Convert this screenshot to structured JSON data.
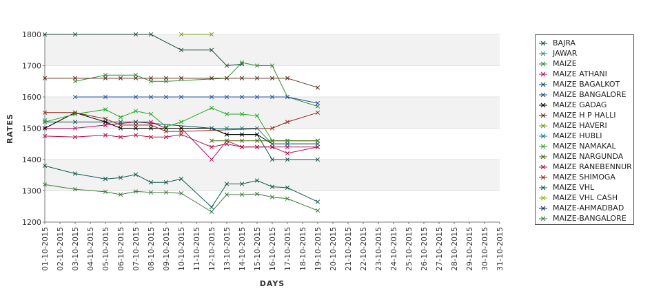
{
  "chart_data": {
    "type": "line",
    "title": "",
    "xlabel": "DAYS",
    "ylabel": "RATES",
    "ylim": [
      1200,
      1800
    ],
    "yticks": [
      1200,
      1300,
      1400,
      1500,
      1600,
      1700,
      1800
    ],
    "grid": "alternating horizontal bands",
    "legend_position": "right",
    "categories": [
      "01-10-2015",
      "02-10-2015",
      "03-10-2015",
      "04-10-2015",
      "05-10-2015",
      "06-10-2015",
      "07-10-2015",
      "08-10-2015",
      "09-10-2015",
      "10-10-2015",
      "11-10-2015",
      "12-10-2015",
      "13-10-2015",
      "14-10-2015",
      "15-10-2015",
      "16-10-2015",
      "17-10-2015",
      "18-10-2015",
      "19-10-2015",
      "20-10-2015",
      "21-10-2015",
      "22-10-2015",
      "23-10-2015",
      "24-10-2015",
      "25-10-2015",
      "26-10-2015",
      "27-10-2015",
      "28-10-2015",
      "29-10-2015",
      "30-10-2015",
      "31-10-2015"
    ],
    "series": [
      {
        "name": "BAJRA",
        "color": "#1a4a3a",
        "values": [
          1800,
          null,
          1800,
          null,
          null,
          null,
          1800,
          1800,
          null,
          1750,
          null,
          1750,
          1700,
          1705,
          null,
          null,
          null,
          null,
          null,
          null,
          null,
          null,
          null,
          null,
          null,
          null,
          null,
          null,
          null,
          null,
          null
        ]
      },
      {
        "name": "JAWAR",
        "color": "#3a8a7a",
        "values": [
          1525,
          null,
          null,
          null,
          null,
          null,
          null,
          null,
          null,
          null,
          null,
          null,
          null,
          null,
          null,
          null,
          null,
          null,
          null,
          null,
          null,
          null,
          null,
          null,
          null,
          null,
          null,
          null,
          null,
          null,
          null
        ]
      },
      {
        "name": "MAIZE",
        "color": "#2e8b2e",
        "values": [
          null,
          null,
          1650,
          null,
          1670,
          null,
          1670,
          1650,
          1650,
          null,
          null,
          null,
          1660,
          1710,
          1700,
          1700,
          1600,
          null,
          1570,
          null,
          null,
          null,
          null,
          null,
          null,
          null,
          null,
          null,
          null,
          null,
          null
        ]
      },
      {
        "name": "MAIZE ATHANI",
        "color": "#b0106a",
        "values": [
          1500,
          null,
          1500,
          null,
          1510,
          null,
          1520,
          1520,
          1500,
          1500,
          null,
          1400,
          1460,
          1440,
          1440,
          1440,
          1440,
          null,
          1440,
          null,
          null,
          null,
          null,
          null,
          null,
          null,
          null,
          null,
          null,
          null,
          null
        ]
      },
      {
        "name": "MAIZE BAGALKOT",
        "color": "#0f4f4f",
        "values": [
          1520,
          null,
          1520,
          null,
          1520,
          1520,
          1520,
          null,
          null,
          null,
          null,
          1500,
          1480,
          1480,
          1480,
          1400,
          1400,
          null,
          1400,
          null,
          null,
          null,
          null,
          null,
          null,
          null,
          null,
          null,
          null,
          null,
          null
        ]
      },
      {
        "name": "MAIZE BANGALORE",
        "color": "#1e4f9a",
        "values": [
          null,
          null,
          1600,
          null,
          1600,
          null,
          1600,
          1600,
          1600,
          1600,
          null,
          1600,
          1600,
          1600,
          1600,
          1600,
          1600,
          null,
          1580,
          null,
          null,
          null,
          null,
          null,
          null,
          null,
          null,
          null,
          null,
          null,
          null
        ]
      },
      {
        "name": "MAIZE GADAG",
        "color": "#000000",
        "values": [
          1500,
          null,
          1550,
          null,
          1520,
          1500,
          1500,
          1500,
          1500,
          1500,
          null,
          1500,
          1480,
          1480,
          1480,
          1450,
          1450,
          null,
          1450,
          null,
          null,
          null,
          null,
          null,
          null,
          null,
          null,
          null,
          null,
          null,
          null
        ]
      },
      {
        "name": "MAIZE H P HALLI",
        "color": "#5a2a1a",
        "values": [
          1660,
          null,
          1660,
          null,
          1660,
          1660,
          1660,
          1660,
          1660,
          1660,
          null,
          1660,
          1660,
          1660,
          1660,
          1660,
          1660,
          null,
          1630,
          null,
          null,
          null,
          null,
          null,
          null,
          null,
          null,
          null,
          null,
          null,
          null
        ]
      },
      {
        "name": "MAIZE HAVERI",
        "color": "#7a9a1a",
        "values": [
          null,
          null,
          null,
          null,
          null,
          null,
          null,
          null,
          null,
          1800,
          null,
          1800,
          null,
          null,
          null,
          null,
          null,
          null,
          null,
          null,
          null,
          null,
          null,
          null,
          null,
          null,
          null,
          null,
          null,
          null,
          null
        ]
      },
      {
        "name": "MAIZE HUBLI",
        "color": "#1a7a8a",
        "values": [
          null,
          null,
          null,
          null,
          null,
          null,
          null,
          null,
          null,
          null,
          null,
          1500,
          1500,
          1500,
          1500,
          1450,
          1450,
          null,
          1450,
          null,
          null,
          null,
          null,
          null,
          null,
          null,
          null,
          null,
          null,
          null,
          null
        ]
      },
      {
        "name": "MAIZE NAMAKAL",
        "color": "#22aa22",
        "values": [
          1520,
          null,
          1545,
          null,
          1560,
          1535,
          1555,
          1545,
          1505,
          1520,
          null,
          1565,
          1545,
          1545,
          1540,
          1460,
          1460,
          null,
          1460,
          null,
          null,
          null,
          null,
          null,
          null,
          null,
          null,
          null,
          null,
          null,
          null
        ]
      },
      {
        "name": "MAIZE NARGUNDA",
        "color": "#4a6a0a",
        "values": [
          null,
          null,
          null,
          null,
          null,
          null,
          null,
          null,
          null,
          null,
          null,
          1460,
          1460,
          1460,
          1460,
          1460,
          1460,
          null,
          1460,
          null,
          null,
          null,
          null,
          null,
          null,
          null,
          null,
          null,
          null,
          null,
          null
        ]
      },
      {
        "name": "MAIZE RANEBENNUR",
        "color": "#b01040",
        "values": [
          1475,
          null,
          1472,
          null,
          1478,
          1472,
          1478,
          1472,
          1472,
          1480,
          null,
          1440,
          1450,
          1440,
          1440,
          1440,
          1420,
          null,
          1440,
          null,
          null,
          null,
          null,
          null,
          null,
          null,
          null,
          null,
          null,
          null,
          null
        ]
      },
      {
        "name": "MAIZE SHIMOGA",
        "color": "#8a2a1a",
        "values": [
          1550,
          null,
          1550,
          null,
          1530,
          1510,
          1510,
          1510,
          1490,
          1490,
          null,
          null,
          null,
          null,
          null,
          1500,
          1520,
          null,
          1550,
          null,
          null,
          null,
          null,
          null,
          null,
          null,
          null,
          null,
          null,
          null,
          null
        ]
      },
      {
        "name": "MAIZE VHL",
        "color": "#0e5a4a",
        "values": [
          1380,
          null,
          1355,
          null,
          1338,
          1342,
          1352,
          1327,
          1327,
          1338,
          null,
          1248,
          1322,
          1322,
          1333,
          1313,
          1310,
          null,
          1265,
          null,
          null,
          null,
          null,
          null,
          null,
          null,
          null,
          null,
          null,
          null,
          null
        ]
      },
      {
        "name": "MAIZE VHL CASH",
        "color": "#9aaa1a",
        "values": [
          null,
          null,
          null,
          null,
          null,
          null,
          null,
          null,
          null,
          null,
          null,
          null,
          null,
          null,
          null,
          null,
          null,
          null,
          null,
          null,
          null,
          null,
          null,
          null,
          null,
          null,
          null,
          null,
          null,
          null,
          null
        ]
      },
      {
        "name": "MAIZE-AHMADBAD",
        "color": "#1a2a6a",
        "values": [
          null,
          null,
          null,
          null,
          null,
          null,
          null,
          null,
          null,
          null,
          null,
          null,
          null,
          null,
          null,
          null,
          null,
          null,
          null,
          null,
          null,
          null,
          null,
          null,
          null,
          null,
          null,
          null,
          null,
          null,
          null
        ]
      },
      {
        "name": "MAIZE-BANGALORE",
        "color": "#3a7a3a",
        "values": [
          1320,
          null,
          1305,
          null,
          1297,
          1288,
          1298,
          1295,
          1295,
          1292,
          null,
          1233,
          1288,
          1288,
          1290,
          1280,
          1275,
          null,
          1237,
          null,
          null,
          null,
          null,
          null,
          null,
          null,
          null,
          null,
          null,
          null,
          null
        ]
      }
    ]
  }
}
